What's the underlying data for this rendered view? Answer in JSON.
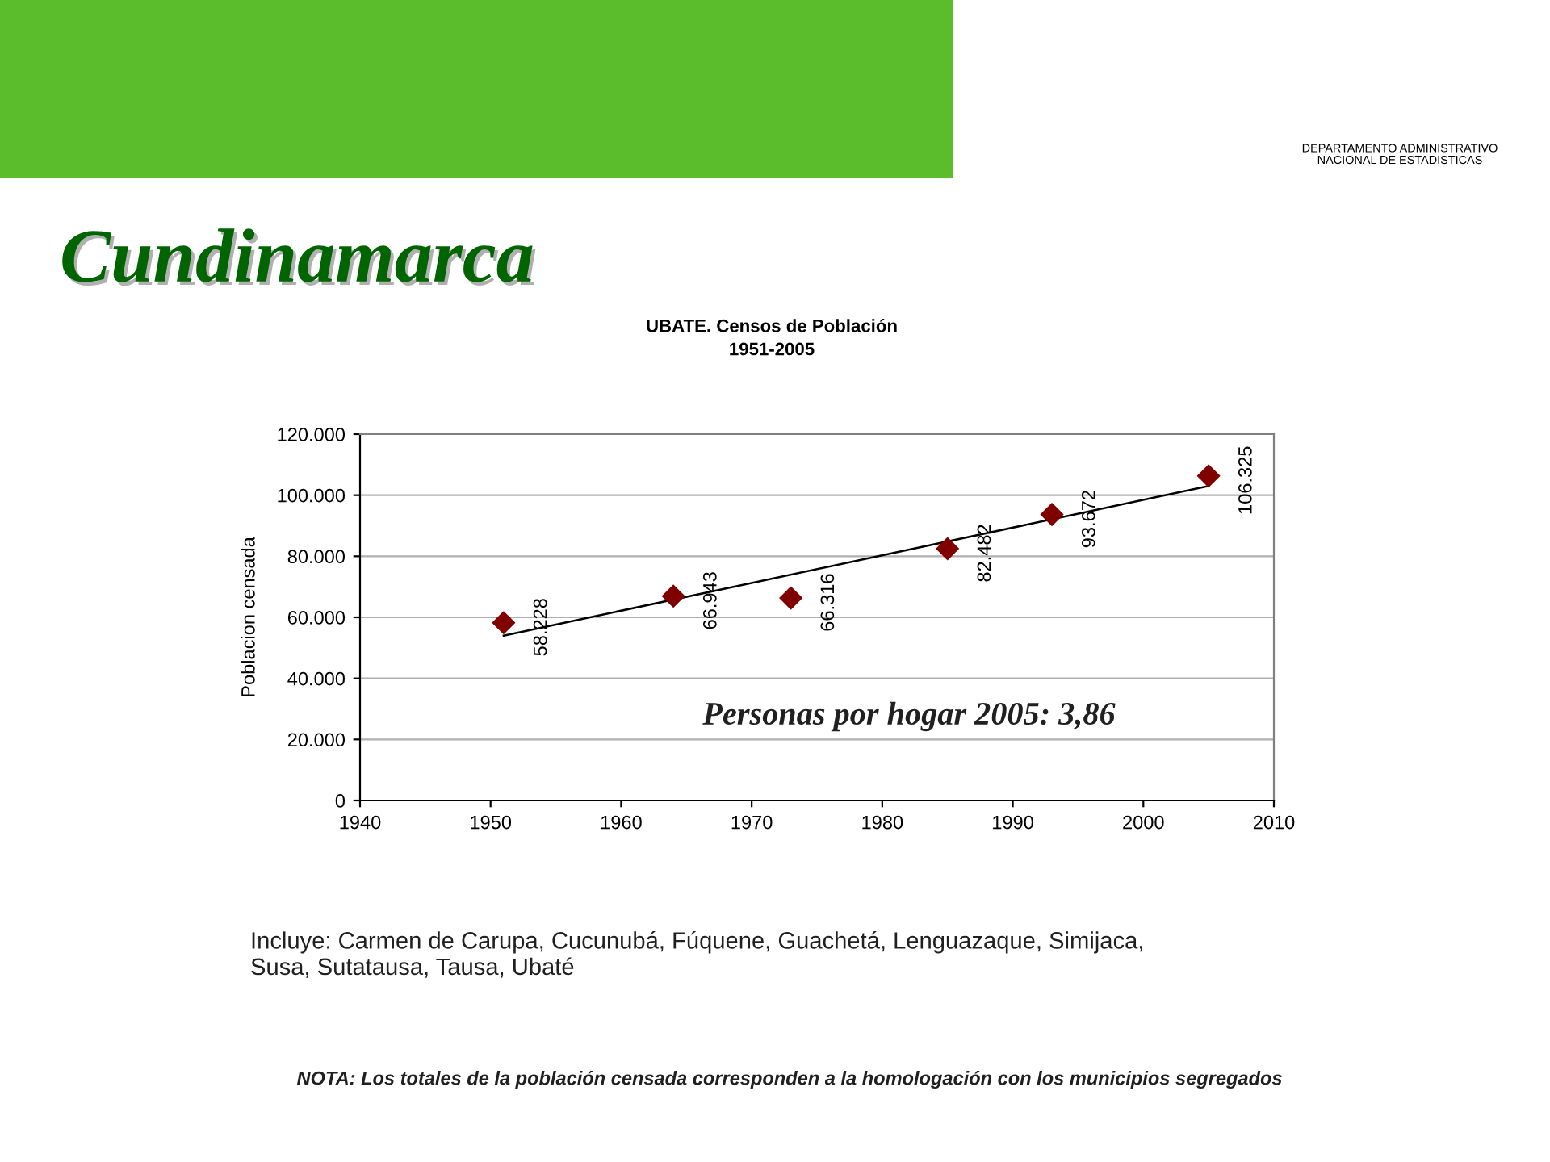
{
  "chart_data": {
    "type": "scatter",
    "title": "Cundinamarca",
    "subtitle": "UBATE. Censos de Población\n1951-2005",
    "ylabel": "Poblacion censada",
    "x": [
      1951,
      1964,
      1973,
      1985,
      1993,
      2005
    ],
    "series": [
      {
        "color": "#800000",
        "marker": "diamond",
        "values": [
          58228,
          66943,
          66316,
          82482,
          93672,
          106325
        ],
        "value_labels": [
          "58.228",
          "66.943",
          "66.316",
          "82.482",
          "93.672",
          "106.325"
        ]
      },
      {
        "type": "line",
        "color": "#000000",
        "marker": "none",
        "line_style": "solid",
        "x": [
          1951,
          2005
        ],
        "values": [
          54000,
          103000
        ]
      }
    ],
    "xlim": [
      1940,
      2010
    ],
    "xticks": [
      1940,
      1950,
      1960,
      1970,
      1980,
      1990,
      2000,
      2010
    ],
    "ylim": [
      0,
      120000
    ],
    "yticks": [
      0,
      {
        "value": 20000,
        "label": "20.000"
      },
      {
        "value": 40000,
        "label": "40.000"
      },
      {
        "value": 60000,
        "label": "60.000"
      },
      {
        "value": 80000,
        "label": "80.000"
      },
      {
        "value": 100000,
        "label": "100.000"
      },
      {
        "value": 120000,
        "label": "120.000"
      }
    ],
    "grid": "y",
    "annotations": [
      "Personas por hogar 2005: 3,86",
      "Incluye: Carmen de Carupa, Cucunubá, Fúquene, Guachetá, Lenguazaque, Simijaca,\nSusa, Sutatausa, Tausa, Ubaté",
      "NOTA: Los totales de la población censada corresponden a la homologación con los municipios segregados",
      "DEPARTAMENTO ADMINISTRATIVO\nNACIONAL DE ESTADISTICAS"
    ]
  }
}
